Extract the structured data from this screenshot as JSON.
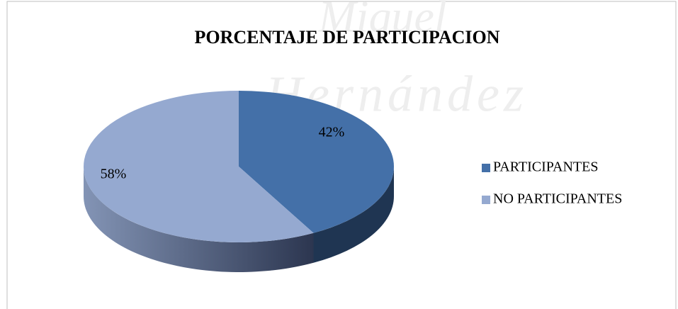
{
  "chart_data": {
    "type": "pie",
    "title": "PORCENTAJE  DE PARTICIPACION",
    "watermark": [
      "Miguel",
      "Hernández"
    ],
    "categories": [
      "PARTICIPANTES",
      "NO PARTICIPANTES"
    ],
    "values": [
      42,
      58
    ],
    "value_labels": [
      "42%",
      "58%"
    ],
    "colors": [
      "#4470a8",
      "#95a9d0"
    ],
    "side_colors": [
      "#1f3552",
      "#5d6c8c"
    ],
    "legend": "right"
  }
}
